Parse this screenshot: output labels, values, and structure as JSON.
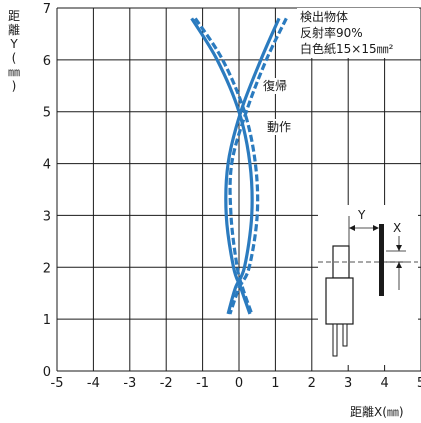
{
  "chart_data": {
    "type": "line",
    "xlabel": "距離X(㎜)",
    "ylabel": [
      "距",
      "離",
      "Y",
      "(",
      "㎜",
      ")"
    ],
    "xlim": [
      -5,
      5
    ],
    "ylim": [
      0,
      7
    ],
    "x_ticks": [
      "-5",
      "-4",
      "-3",
      "-2",
      "-1",
      "0",
      "1",
      "2",
      "3",
      "4",
      "5"
    ],
    "y_ticks": [
      "0",
      "1",
      "2",
      "3",
      "4",
      "5",
      "6",
      "7"
    ],
    "grid": true,
    "conditions": [
      "検出物体",
      "反射率90%",
      "白色紙15×15㎜²"
    ],
    "series": [
      {
        "name": "復帰",
        "style": "solid",
        "color": "#2b7bbf",
        "left_branch": [
          [
            1.1,
            6.8
          ],
          [
            0.6,
            6.0
          ],
          [
            0.05,
            5.0
          ],
          [
            -0.3,
            4.0
          ],
          [
            -0.35,
            3.0
          ],
          [
            -0.15,
            2.0
          ],
          [
            0.05,
            1.6
          ],
          [
            0.3,
            1.1
          ]
        ],
        "right_branch": [
          [
            -1.3,
            6.8
          ],
          [
            -0.6,
            6.0
          ],
          [
            0.0,
            5.0
          ],
          [
            0.3,
            4.0
          ],
          [
            0.35,
            3.0
          ],
          [
            0.15,
            2.0
          ],
          [
            -0.1,
            1.6
          ],
          [
            -0.3,
            1.1
          ]
        ]
      },
      {
        "name": "動作",
        "style": "dashed",
        "color": "#2b7bbf",
        "left_branch": [
          [
            1.3,
            6.8
          ],
          [
            0.75,
            6.0
          ],
          [
            0.2,
            5.0
          ],
          [
            -0.2,
            4.0
          ],
          [
            -0.22,
            3.0
          ],
          [
            -0.05,
            2.0
          ],
          [
            0.1,
            1.6
          ],
          [
            0.35,
            1.1
          ]
        ],
        "right_branch": [
          [
            -1.2,
            6.8
          ],
          [
            -0.45,
            6.0
          ],
          [
            0.15,
            5.0
          ],
          [
            0.45,
            4.0
          ],
          [
            0.5,
            3.0
          ],
          [
            0.28,
            2.0
          ],
          [
            0.0,
            1.6
          ],
          [
            -0.25,
            1.1
          ]
        ]
      }
    ],
    "annotations": [
      {
        "text": "復帰",
        "x": 0.3,
        "y": 5.35
      },
      {
        "text": "動作",
        "x": 0.6,
        "y": 4.6
      }
    ],
    "inset_labels": {
      "y": "Y",
      "x": "X"
    }
  },
  "colors": {
    "curve": "#2b7bbf",
    "grid": "#1a1a1a",
    "text": "#1a1a1a"
  }
}
